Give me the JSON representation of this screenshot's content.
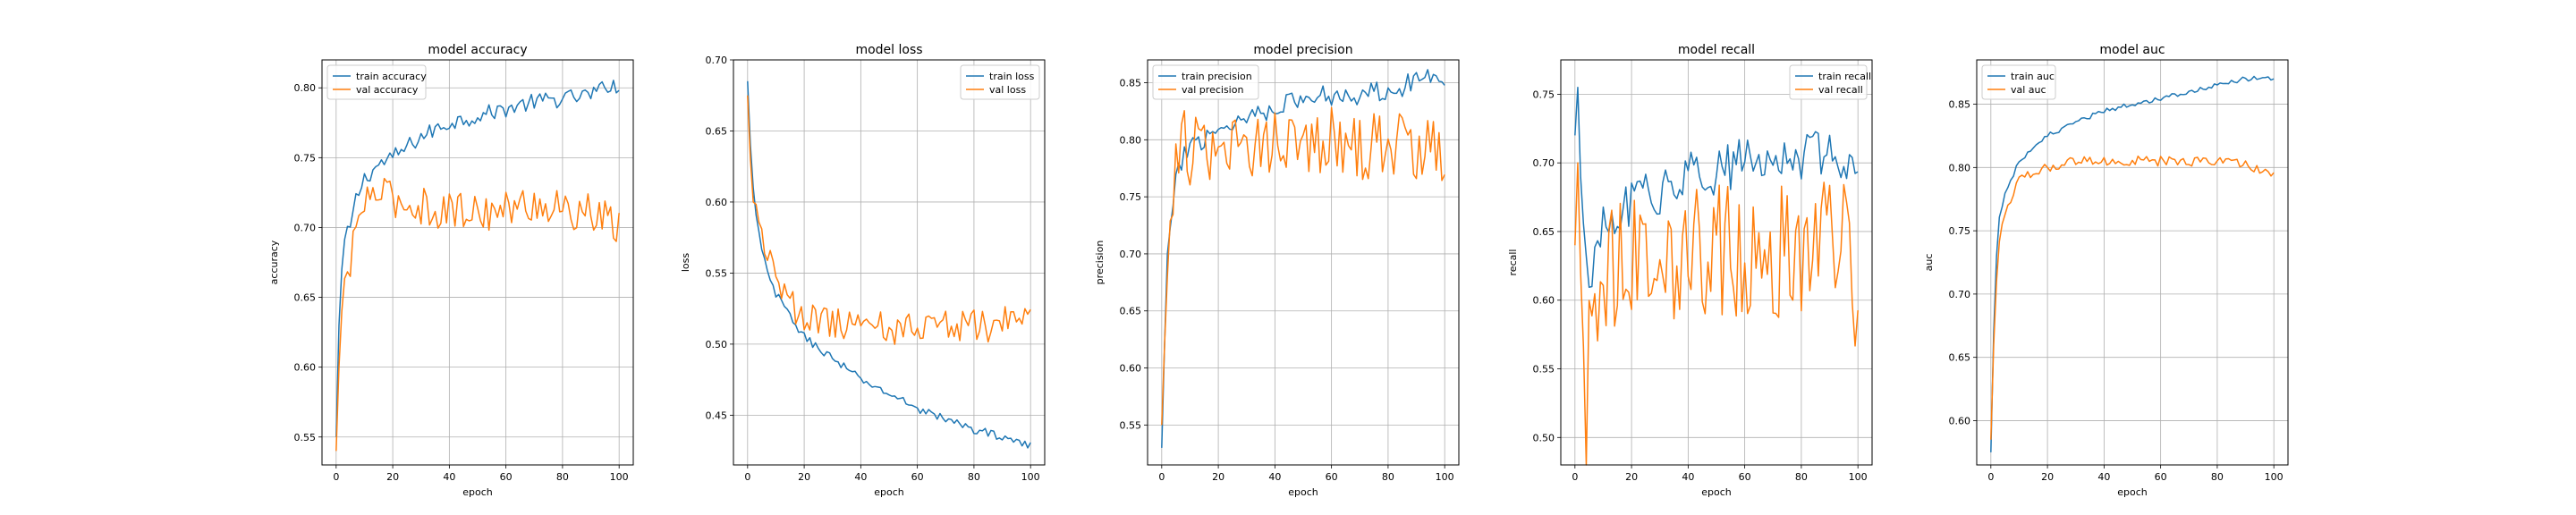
{
  "colors": {
    "train": "#1f77b4",
    "val": "#ff7f0e",
    "grid": "#b0b0b0"
  },
  "chart_data": [
    {
      "type": "line",
      "title": "model accuracy",
      "xlabel": "epoch",
      "ylabel": "accuracy",
      "xlim": [
        -5,
        105
      ],
      "ylim": [
        0.53,
        0.82
      ],
      "xticks": [
        0,
        20,
        40,
        60,
        80,
        100
      ],
      "yticks": [
        0.55,
        0.6,
        0.65,
        0.7,
        0.75,
        0.8
      ],
      "ytick_labels": [
        "0.55",
        "0.60",
        "0.65",
        "0.70",
        "0.75",
        "0.80"
      ],
      "legend": "upper-left",
      "grid": true,
      "series": [
        {
          "name": "train accuracy",
          "color": "train",
          "keypoints": [
            [
              0,
              0.55
            ],
            [
              1,
              0.63
            ],
            [
              2,
              0.67
            ],
            [
              3,
              0.69
            ],
            [
              5,
              0.7
            ],
            [
              7,
              0.72
            ],
            [
              10,
              0.735
            ],
            [
              15,
              0.745
            ],
            [
              20,
              0.75
            ],
            [
              30,
              0.765
            ],
            [
              40,
              0.775
            ],
            [
              50,
              0.78
            ],
            [
              60,
              0.785
            ],
            [
              70,
              0.79
            ],
            [
              80,
              0.792
            ],
            [
              90,
              0.795
            ],
            [
              95,
              0.8
            ],
            [
              98,
              0.805
            ],
            [
              100,
              0.795
            ]
          ],
          "noise": 0.006
        },
        {
          "name": "val accuracy",
          "color": "val",
          "keypoints": [
            [
              0,
              0.54
            ],
            [
              1,
              0.6
            ],
            [
              2,
              0.64
            ],
            [
              3,
              0.66
            ],
            [
              5,
              0.67
            ],
            [
              7,
              0.7
            ],
            [
              10,
              0.72
            ],
            [
              15,
              0.725
            ],
            [
              20,
              0.72
            ],
            [
              30,
              0.715
            ],
            [
              40,
              0.712
            ],
            [
              50,
              0.712
            ],
            [
              60,
              0.712
            ],
            [
              70,
              0.718
            ],
            [
              80,
              0.712
            ],
            [
              90,
              0.71
            ],
            [
              100,
              0.7
            ]
          ],
          "noise": 0.014
        }
      ]
    },
    {
      "type": "line",
      "title": "model loss",
      "xlabel": "epoch",
      "ylabel": "loss",
      "xlim": [
        -5,
        105
      ],
      "ylim": [
        0.415,
        0.7
      ],
      "xticks": [
        0,
        20,
        40,
        60,
        80,
        100
      ],
      "yticks": [
        0.45,
        0.5,
        0.55,
        0.6,
        0.65,
        0.7
      ],
      "ytick_labels": [
        "0.45",
        "0.50",
        "0.55",
        "0.60",
        "0.65",
        "0.70"
      ],
      "legend": "upper-right",
      "grid": true,
      "series": [
        {
          "name": "train loss",
          "color": "train",
          "keypoints": [
            [
              0,
              0.685
            ],
            [
              1,
              0.64
            ],
            [
              2,
              0.61
            ],
            [
              3,
              0.59
            ],
            [
              5,
              0.565
            ],
            [
              8,
              0.545
            ],
            [
              10,
              0.535
            ],
            [
              15,
              0.52
            ],
            [
              20,
              0.505
            ],
            [
              30,
              0.49
            ],
            [
              40,
              0.475
            ],
            [
              50,
              0.465
            ],
            [
              60,
              0.455
            ],
            [
              70,
              0.447
            ],
            [
              80,
              0.44
            ],
            [
              90,
              0.435
            ],
            [
              100,
              0.428
            ]
          ],
          "noise": 0.003
        },
        {
          "name": "val loss",
          "color": "val",
          "keypoints": [
            [
              0,
              0.675
            ],
            [
              1,
              0.63
            ],
            [
              2,
              0.6
            ],
            [
              3,
              0.595
            ],
            [
              5,
              0.58
            ],
            [
              8,
              0.56
            ],
            [
              10,
              0.545
            ],
            [
              15,
              0.53
            ],
            [
              20,
              0.52
            ],
            [
              30,
              0.515
            ],
            [
              40,
              0.515
            ],
            [
              50,
              0.51
            ],
            [
              60,
              0.512
            ],
            [
              70,
              0.515
            ],
            [
              80,
              0.512
            ],
            [
              90,
              0.515
            ],
            [
              98,
              0.525
            ],
            [
              100,
              0.535
            ]
          ],
          "noise": 0.012
        }
      ]
    },
    {
      "type": "line",
      "title": "model precision",
      "xlabel": "epoch",
      "ylabel": "precision",
      "xlim": [
        -5,
        105
      ],
      "ylim": [
        0.515,
        0.87
      ],
      "xticks": [
        0,
        20,
        40,
        60,
        80,
        100
      ],
      "yticks": [
        0.55,
        0.6,
        0.65,
        0.7,
        0.75,
        0.8,
        0.85
      ],
      "ytick_labels": [
        "0.55",
        "0.60",
        "0.65",
        "0.70",
        "0.75",
        "0.80",
        "0.85"
      ],
      "legend": "upper-left",
      "grid": true,
      "series": [
        {
          "name": "train precision",
          "color": "train",
          "keypoints": [
            [
              0,
              0.53
            ],
            [
              1,
              0.62
            ],
            [
              2,
              0.7
            ],
            [
              3,
              0.72
            ],
            [
              5,
              0.76
            ],
            [
              8,
              0.79
            ],
            [
              10,
              0.795
            ],
            [
              20,
              0.81
            ],
            [
              30,
              0.82
            ],
            [
              40,
              0.83
            ],
            [
              50,
              0.835
            ],
            [
              60,
              0.84
            ],
            [
              70,
              0.84
            ],
            [
              80,
              0.845
            ],
            [
              90,
              0.85
            ],
            [
              95,
              0.86
            ],
            [
              100,
              0.855
            ]
          ],
          "noise": 0.01
        },
        {
          "name": "val precision",
          "color": "val",
          "keypoints": [
            [
              0,
              0.55
            ],
            [
              1,
              0.62
            ],
            [
              2,
              0.68
            ],
            [
              3,
              0.72
            ],
            [
              5,
              0.78
            ],
            [
              8,
              0.8
            ],
            [
              10,
              0.79
            ],
            [
              20,
              0.79
            ],
            [
              30,
              0.795
            ],
            [
              40,
              0.8
            ],
            [
              50,
              0.8
            ],
            [
              60,
              0.8
            ],
            [
              70,
              0.79
            ],
            [
              80,
              0.8
            ],
            [
              90,
              0.79
            ],
            [
              100,
              0.785
            ]
          ],
          "noise": 0.03
        }
      ]
    },
    {
      "type": "line",
      "title": "model recall",
      "xlabel": "epoch",
      "ylabel": "recall",
      "xlim": [
        -5,
        105
      ],
      "ylim": [
        0.48,
        0.775
      ],
      "xticks": [
        0,
        20,
        40,
        60,
        80,
        100
      ],
      "yticks": [
        0.5,
        0.55,
        0.6,
        0.65,
        0.7,
        0.75
      ],
      "ytick_labels": [
        "0.50",
        "0.55",
        "0.60",
        "0.65",
        "0.70",
        "0.75"
      ],
      "legend": "upper-right",
      "grid": true,
      "series": [
        {
          "name": "train recall",
          "color": "train",
          "keypoints": [
            [
              0,
              0.72
            ],
            [
              1,
              0.755
            ],
            [
              2,
              0.69
            ],
            [
              3,
              0.65
            ],
            [
              5,
              0.62
            ],
            [
              8,
              0.63
            ],
            [
              10,
              0.65
            ],
            [
              15,
              0.66
            ],
            [
              20,
              0.67
            ],
            [
              30,
              0.68
            ],
            [
              40,
              0.69
            ],
            [
              50,
              0.695
            ],
            [
              60,
              0.7
            ],
            [
              70,
              0.7
            ],
            [
              80,
              0.705
            ],
            [
              90,
              0.71
            ],
            [
              100,
              0.7
            ]
          ],
          "noise": 0.018
        },
        {
          "name": "val recall",
          "color": "val",
          "keypoints": [
            [
              0,
              0.64
            ],
            [
              1,
              0.7
            ],
            [
              2,
              0.62
            ],
            [
              3,
              0.55
            ],
            [
              4,
              0.5
            ],
            [
              6,
              0.6
            ],
            [
              10,
              0.62
            ],
            [
              20,
              0.64
            ],
            [
              30,
              0.64
            ],
            [
              40,
              0.63
            ],
            [
              50,
              0.64
            ],
            [
              60,
              0.63
            ],
            [
              70,
              0.635
            ],
            [
              80,
              0.64
            ],
            [
              90,
              0.64
            ],
            [
              97,
              0.66
            ],
            [
              99,
              0.6
            ],
            [
              100,
              0.6
            ]
          ],
          "noise": 0.05
        }
      ]
    },
    {
      "type": "line",
      "title": "model auc",
      "xlabel": "epoch",
      "ylabel": "auc",
      "xlim": [
        -5,
        105
      ],
      "ylim": [
        0.565,
        0.885
      ],
      "xticks": [
        0,
        20,
        40,
        60,
        80,
        100
      ],
      "yticks": [
        0.6,
        0.65,
        0.7,
        0.75,
        0.8,
        0.85
      ],
      "ytick_labels": [
        "0.60",
        "0.65",
        "0.70",
        "0.75",
        "0.80",
        "0.85"
      ],
      "legend": "upper-left",
      "grid": true,
      "series": [
        {
          "name": "train auc",
          "color": "train",
          "keypoints": [
            [
              0,
              0.575
            ],
            [
              1,
              0.67
            ],
            [
              2,
              0.73
            ],
            [
              3,
              0.76
            ],
            [
              5,
              0.78
            ],
            [
              8,
              0.795
            ],
            [
              10,
              0.805
            ],
            [
              15,
              0.815
            ],
            [
              20,
              0.825
            ],
            [
              30,
              0.835
            ],
            [
              40,
              0.845
            ],
            [
              50,
              0.85
            ],
            [
              60,
              0.855
            ],
            [
              70,
              0.86
            ],
            [
              80,
              0.865
            ],
            [
              90,
              0.87
            ],
            [
              100,
              0.87
            ]
          ],
          "noise": 0.002
        },
        {
          "name": "val auc",
          "color": "val",
          "keypoints": [
            [
              0,
              0.585
            ],
            [
              1,
              0.66
            ],
            [
              2,
              0.71
            ],
            [
              3,
              0.74
            ],
            [
              5,
              0.765
            ],
            [
              8,
              0.78
            ],
            [
              10,
              0.79
            ],
            [
              15,
              0.795
            ],
            [
              20,
              0.8
            ],
            [
              30,
              0.805
            ],
            [
              40,
              0.805
            ],
            [
              50,
              0.805
            ],
            [
              60,
              0.805
            ],
            [
              70,
              0.805
            ],
            [
              80,
              0.805
            ],
            [
              90,
              0.803
            ],
            [
              100,
              0.795
            ]
          ],
          "noise": 0.004
        }
      ]
    }
  ]
}
